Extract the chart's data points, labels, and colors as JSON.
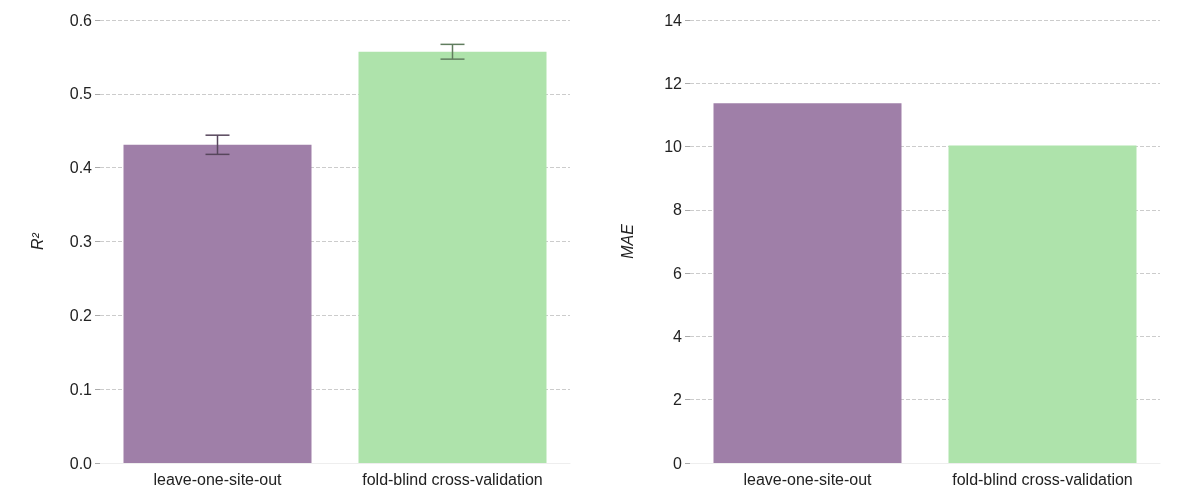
{
  "chart_data": [
    {
      "type": "bar",
      "ylabel": "R²",
      "categories": [
        "leave-one-site-out",
        "fold-blind cross-validation"
      ],
      "values": [
        0.431,
        0.557
      ],
      "errors": [
        0.013,
        0.01
      ],
      "colors": [
        "#9f7fa8",
        "#aee3ab"
      ],
      "ylim": [
        0,
        0.6
      ],
      "yticks": [
        {
          "value": 0,
          "label": "0.0"
        },
        0.1,
        0.2,
        0.3,
        0.4,
        0.5,
        0.6
      ],
      "grid": "y"
    },
    {
      "type": "bar",
      "ylabel": "MAE",
      "categories": [
        "leave-one-site-out",
        "fold-blind cross-validation"
      ],
      "values": [
        11.37,
        10.03
      ],
      "colors": [
        "#9f7fa8",
        "#aee3ab"
      ],
      "ylim": [
        0,
        14
      ],
      "yticks": [
        0,
        2,
        4,
        6,
        8,
        10,
        12,
        14
      ],
      "grid": "y"
    }
  ]
}
